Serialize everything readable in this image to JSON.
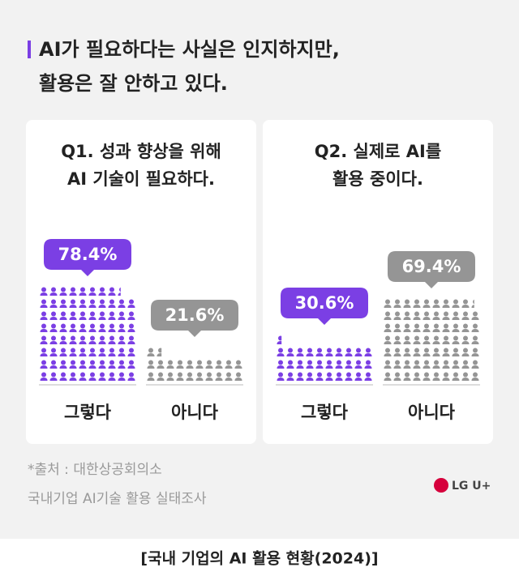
{
  "title": [
    "AI가 필요하다는 사실은 인지하지만,",
    "활용은 잘 안하고 있다."
  ],
  "chart_data": [
    {
      "type": "pictogram",
      "title": [
        "Q1. 성과 향상을 위해",
        "AI 기술이 필요하다."
      ],
      "categories": [
        "그렇다",
        "아니다"
      ],
      "values": [
        78.4,
        21.6
      ],
      "value_labels": [
        "78.4%",
        "21.6%"
      ],
      "colors": [
        "#7b3fe4",
        "#959595"
      ]
    },
    {
      "type": "pictogram",
      "title": [
        "Q2. 실제로 AI를",
        "활용 중이다."
      ],
      "categories": [
        "그렇다",
        "아니다"
      ],
      "values": [
        30.6,
        69.4
      ],
      "value_labels": [
        "30.6%",
        "69.4%"
      ],
      "colors": [
        "#7b3fe4",
        "#959595"
      ]
    }
  ],
  "source": [
    "*출처 : 대한상공회의소",
    "국내기업 AI기술 활용 실태조사"
  ],
  "brand": "LG U+",
  "footer": "[국내 기업의 AI 활용 현황(2024)]"
}
